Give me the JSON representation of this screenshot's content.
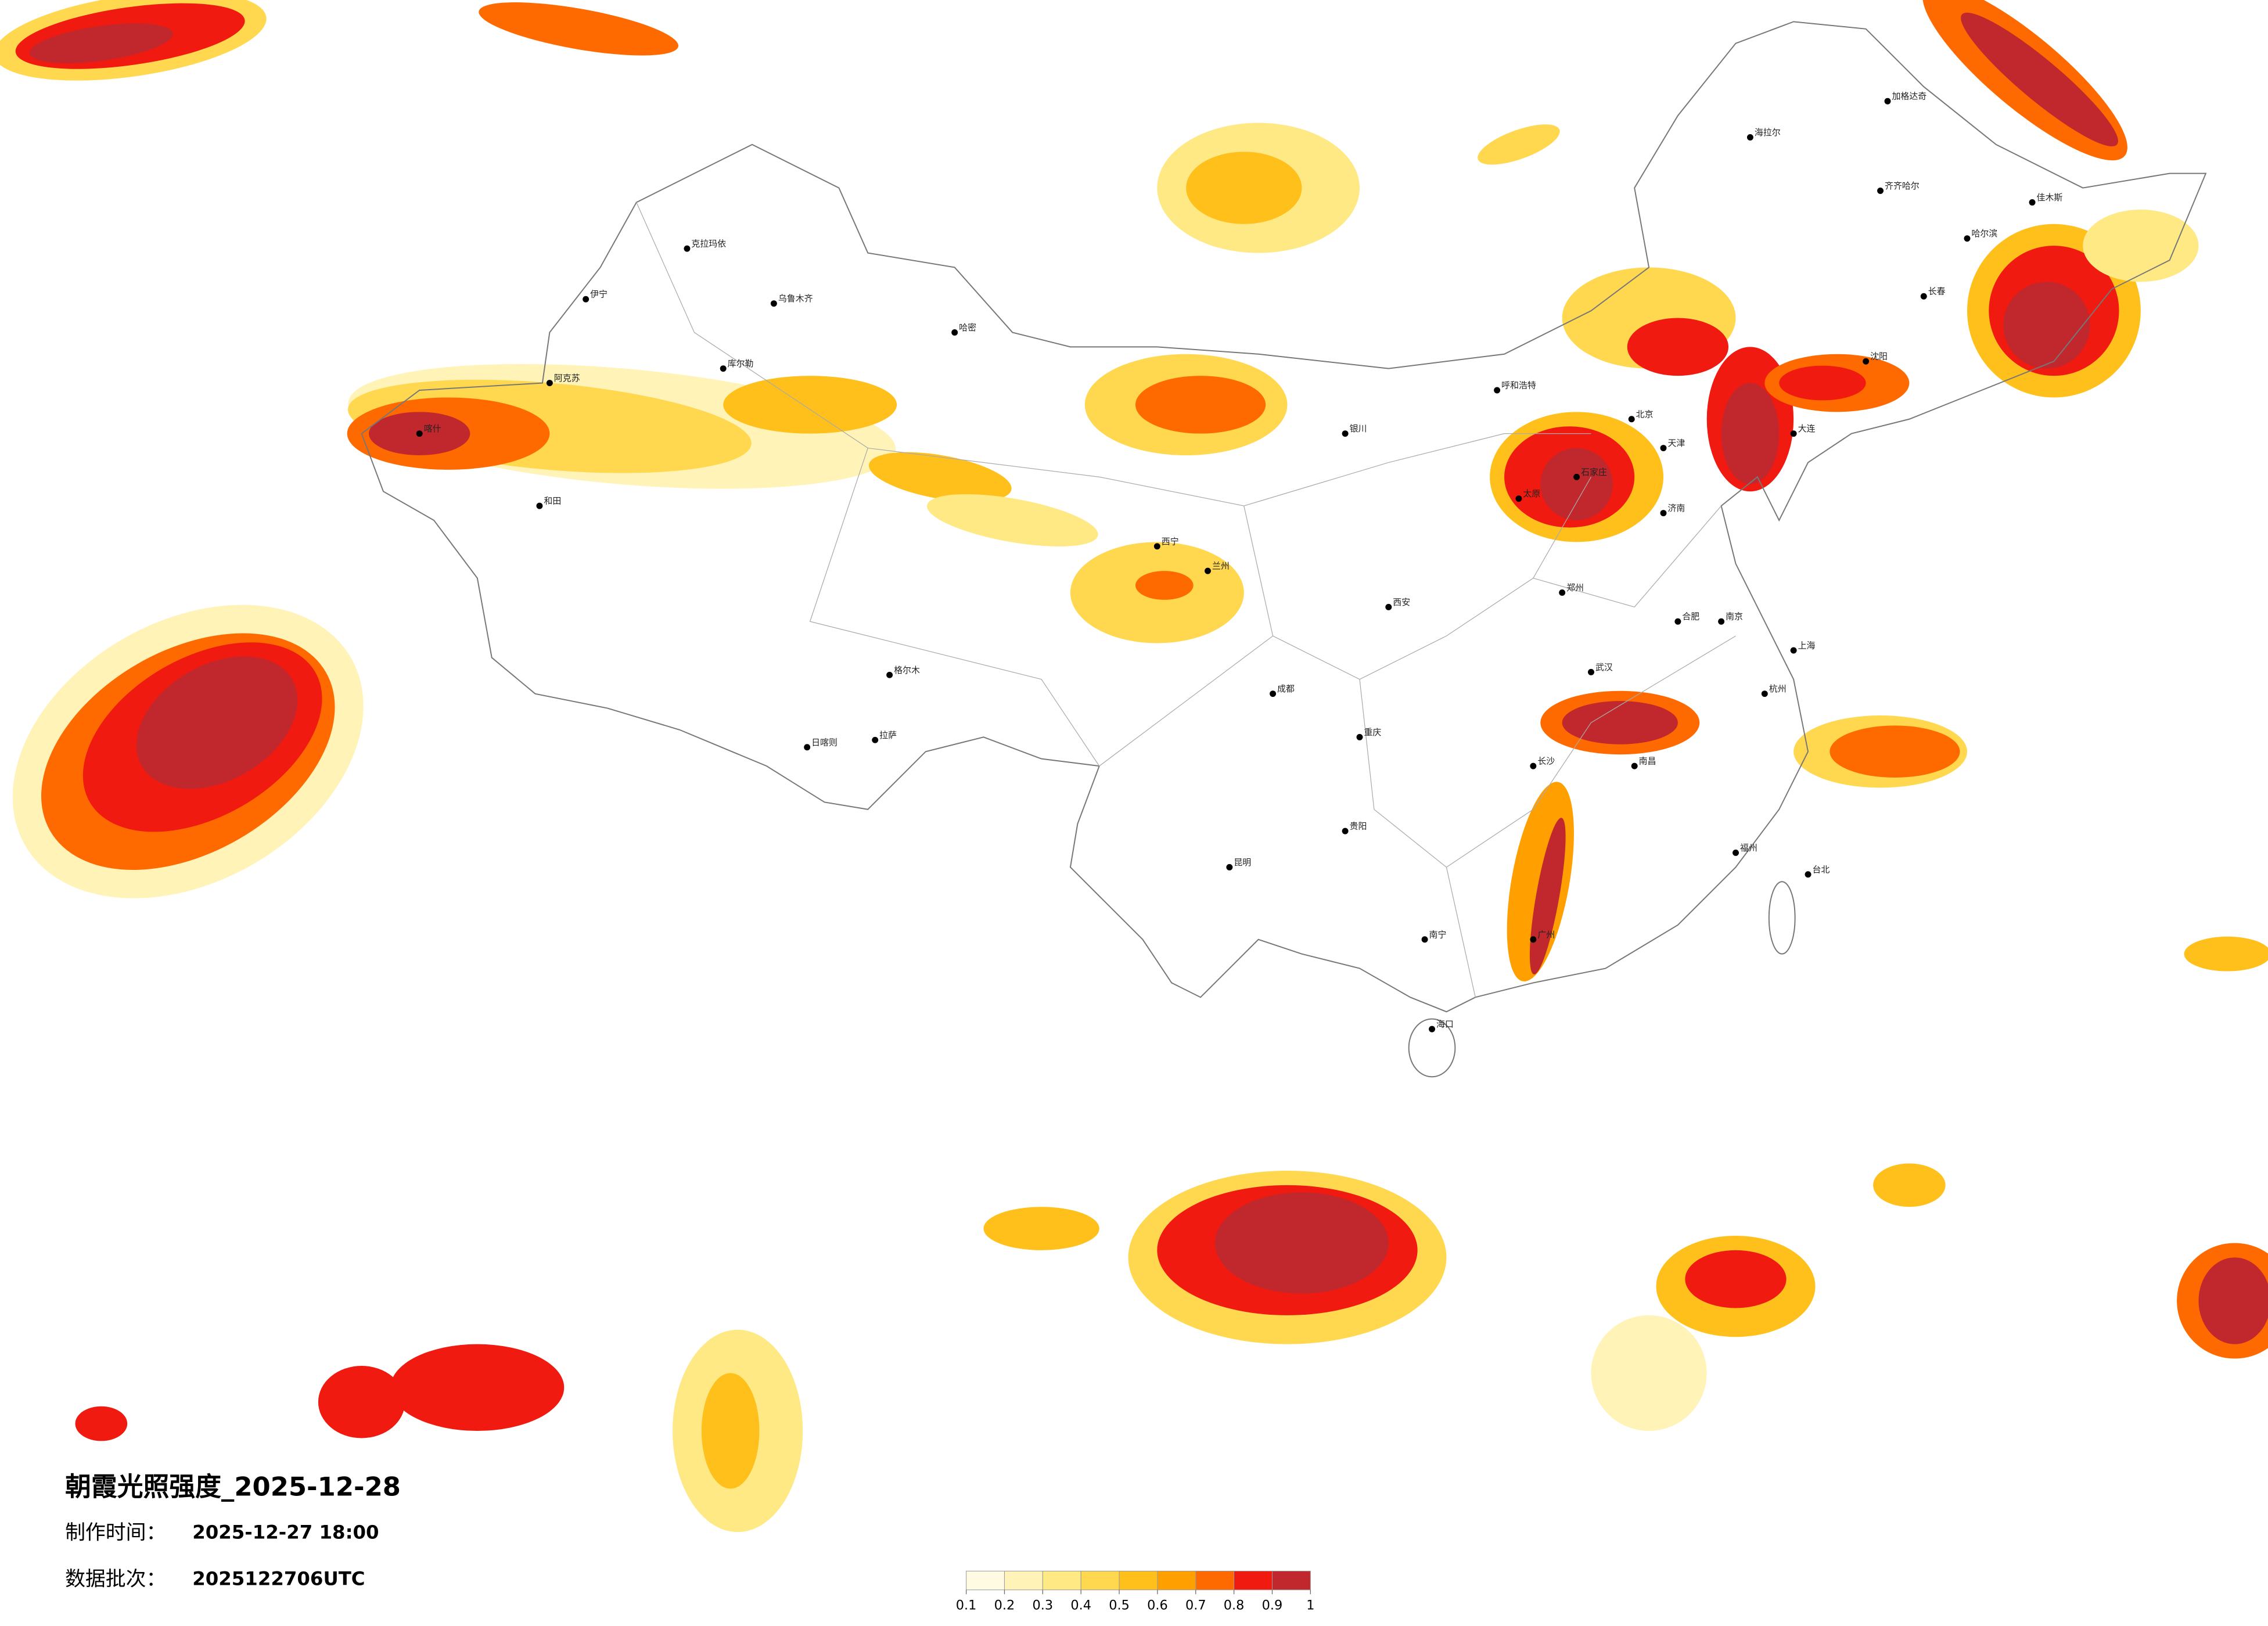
{
  "title": "朝霞光照强度_2025-12-28",
  "meta": {
    "made_label": "制作时间：",
    "made_value": "2025-12-27 18:00",
    "batch_label": "数据批次：",
    "batch_value": "2025122706UTC"
  },
  "colorbar": {
    "ticks": [
      0.1,
      0.2,
      0.3,
      0.4,
      0.5,
      0.6,
      0.7,
      0.8,
      0.9,
      1
    ],
    "colors": [
      "#fffbe3",
      "#fff3b8",
      "#ffe985",
      "#ffd84f",
      "#ffc01c",
      "#ff9f00",
      "#ff6a00",
      "#f01a10",
      "#c0282e"
    ]
  },
  "cities": [
    "克拉玛依",
    "乌鲁木齐",
    "伊宁",
    "阿克苏",
    "喀什",
    "和田",
    "哈密",
    "库尔勒",
    "格尔木",
    "拉萨",
    "日喀则",
    "西宁",
    "兰州",
    "银川",
    "呼和浩特",
    "北京",
    "天津",
    "石家庄",
    "太原",
    "济南",
    "郑州",
    "西安",
    "成都",
    "重庆",
    "武汉",
    "长沙",
    "南昌",
    "合肥",
    "南京",
    "上海",
    "杭州",
    "福州",
    "广州",
    "南宁",
    "贵阳",
    "昆明",
    "哈尔滨",
    "长春",
    "沈阳",
    "大连",
    "台北",
    "海口",
    "海拉尔",
    "加格达奇",
    "齐齐哈尔",
    "佳木斯"
  ]
}
